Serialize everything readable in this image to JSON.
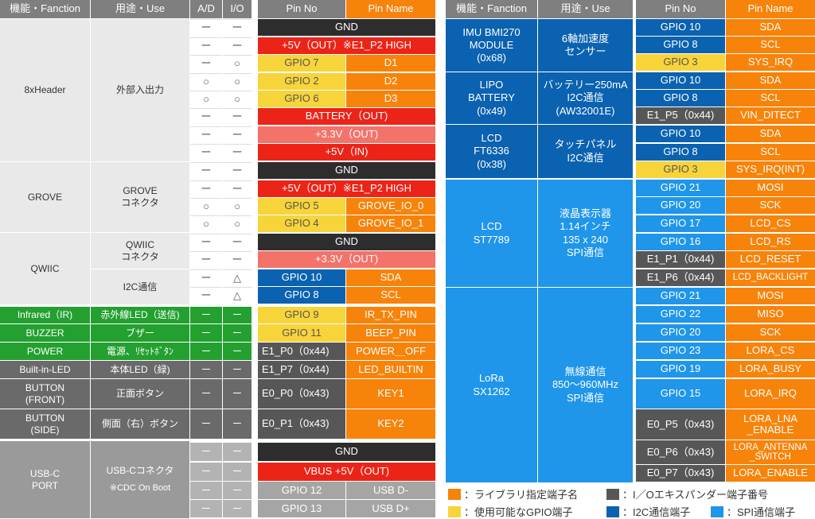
{
  "left": {
    "headers": {
      "function": "機能・Fanction",
      "use": "用途・Use",
      "ad": "A/D",
      "io": "I/O",
      "pin_no": "Pin No",
      "pin_name": "Pin Name"
    },
    "groups": {
      "header8": {
        "function": "8xHeader",
        "use": "外部入出力"
      },
      "grove": {
        "function": "GROVE",
        "use": "GROVE\nコネクタ"
      },
      "qwiic": {
        "function": "QWIIC",
        "use1": "QWIIC\nコネクタ",
        "use2": "I2C通信"
      },
      "infrared": {
        "function": "Infrared（IR)",
        "use": "赤外線LED（送信)"
      },
      "buzzer": {
        "function": "BUZZER",
        "use": "ブザー"
      },
      "power": {
        "function": "POWER",
        "use": "電源、ﾘｾｯﾄﾎﾞﾀﾝ"
      },
      "builtin": {
        "function": "Built-in-LED",
        "use": "本体LED（緑)"
      },
      "btn_front": {
        "function": "BUTTON\n(FRONT)",
        "use": "正面ボタン"
      },
      "btn_side": {
        "function": "BUTTON\n(SIDE)",
        "use": "側面（右）ボタン"
      },
      "usbc": {
        "function": "USB-C\nPORT",
        "use1": "USB-Cコネクタ",
        "use2": "※CDC On Boot"
      }
    },
    "marks": {
      "dash": "ー",
      "circle": "○",
      "triangle": "△"
    },
    "pins": {
      "gnd": "GND",
      "p5v_out": "+5V（OUT）※E1_P2 HIGH",
      "gpio7": "GPIO 7",
      "d1": "D1",
      "gpio2": "GPIO 2",
      "d2": "D2",
      "gpio6": "GPIO 6",
      "d3": "D3",
      "battery": "BATTERY（OUT)",
      "p33_out": "+3.3V（OUT)",
      "p5v_in": "+5V（IN)",
      "gpio5": "GPIO 5",
      "grove_io0": "GROVE_IO_0",
      "gpio4": "GPIO 4",
      "grove_io1": "GROVE_IO_1",
      "gpio10": "GPIO 10",
      "sda": "SDA",
      "gpio8": "GPIO 8",
      "scl": "SCL",
      "gpio9": "GPIO 9",
      "ir_tx": "IR_TX_PIN",
      "gpio11": "GPIO 11",
      "beep": "BEEP_PIN",
      "e1p0": "E1_P0（0x44)",
      "power_off": "POWER＿OFF",
      "e1p7": "E1_P7（0x44)",
      "led_builtin": "LED_BUILTIN",
      "e0p0": "E0_P0（0x43)",
      "key1": "KEY1",
      "e0p1": "E0_P1（0x43)",
      "key2": "KEY2",
      "vbus": "VBUS +5V（OUT)",
      "gpio12": "GPIO 12",
      "usbdm": "USB D-",
      "gpio13": "GPIO 13",
      "usbdp": "USB D+"
    }
  },
  "right": {
    "headers": {
      "function": "機能・Fanction",
      "use": "用途・Use",
      "pin_no": "Pin No",
      "pin_name": "Pin Name"
    },
    "groups": {
      "imu": {
        "function": "IMU BMI270\nMODULE\n(0x68)",
        "use": "6軸加速度\nセンサー"
      },
      "lipo": {
        "function": "LIPO\nBATTERY\n(0x49)",
        "use": "バッテリー250mA\nI2C通信\n(AW32001E)"
      },
      "lcd_touch": {
        "function": "LCD\nFT6336\n(0x38)",
        "use": "タッチパネル\nI2C通信"
      },
      "lcd": {
        "function": "LCD\nST7789",
        "use": "液晶表示器\n1.14インチ\n135 x 240\nSPI通信"
      },
      "lora": {
        "function": "LoRa\nSX1262",
        "use": "無線通信\n850〜960MHz\nSPI通信"
      }
    },
    "pins": {
      "gpio10": "GPIO 10",
      "sda": "SDA",
      "gpio8": "GPIO 8",
      "scl": "SCL",
      "gpio3": "GPIO 3",
      "sys_irq": "SYS_IRQ",
      "e1p5": "E1_P5（0x44)",
      "vin_ditect": "VIN_DITECT",
      "sys_irq_int": "SYS_IRQ(INT)",
      "gpio21": "GPIO 21",
      "mosi": "MOSI",
      "gpio20": "GPIO 20",
      "sck": "SCK",
      "gpio17": "GPIO 17",
      "lcd_cs": "LCD_CS",
      "gpio16": "GPIO 16",
      "lcd_rs": "LCD_RS",
      "e1p1": "E1_P1（0x44)",
      "lcd_reset": "LCD_RESET",
      "e1p6": "E1_P6（0x44)",
      "lcd_backlight": "LCD_BACKLIGHT",
      "gpio22": "GPIO 22",
      "miso": "MISO",
      "gpio23": "GPIO 23",
      "lora_cs": "LORA_CS",
      "gpio19": "GPIO 19",
      "lora_busy": "LORA_BUSY",
      "gpio15": "GPIO 15",
      "lora_irq": "LORA_IRQ",
      "e0p5": "E0_P5（0x43)",
      "lora_lna": "LORA_LNA\n_ENABLE",
      "e0p6": "E0_P6（0x43)",
      "lora_antenna": "LORA_ANTENNA\n_SWITCH",
      "e0p7": "E0_P7（0x43)",
      "lora_enable": "LORA_ENABLE"
    }
  },
  "legend": {
    "library": "：ライブラリ指定端子名",
    "io_expander": "：I／Oエキスパンダー端子番号",
    "gpio": "：使用可能なGPIO端子",
    "i2c": "：I2C通信端子",
    "spi": "：SPI通信端子"
  },
  "colors": {
    "orange": "#f7830a",
    "yellow": "#f8d43b",
    "dark_gray": "#575757",
    "i2c_blue": "#0a62b0",
    "spi_blue": "#1f96ea",
    "green": "#23a030",
    "red": "#ec2418"
  }
}
